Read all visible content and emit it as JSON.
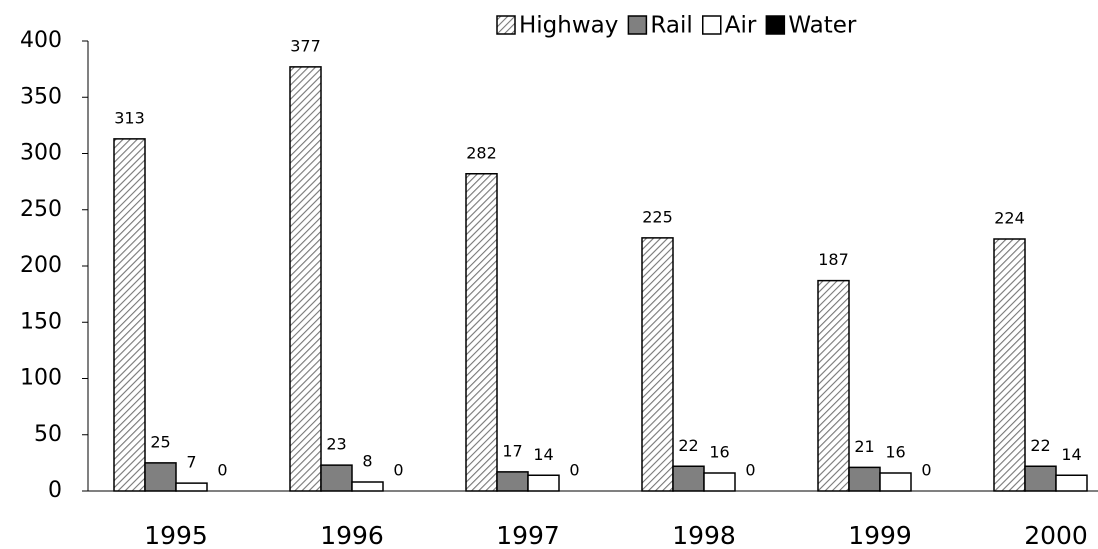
{
  "chart_data": {
    "type": "bar",
    "categories": [
      "1995",
      "1996",
      "1997",
      "1998",
      "1999",
      "2000"
    ],
    "series": [
      {
        "name": "Highway",
        "color": "#777777",
        "pattern": "hatch",
        "values": [
          313,
          377,
          282,
          225,
          187,
          224
        ]
      },
      {
        "name": "Rail",
        "color": "#808080",
        "values": [
          25,
          23,
          17,
          22,
          21,
          22
        ]
      },
      {
        "name": "Air",
        "color": "#ffffff",
        "values": [
          7,
          8,
          14,
          16,
          16,
          14
        ]
      },
      {
        "name": "Water",
        "color": "#000000",
        "values": [
          0,
          0,
          0,
          0,
          0,
          0
        ]
      }
    ],
    "ylim": [
      0,
      400
    ],
    "yticks": [
      0,
      50,
      100,
      150,
      200,
      250,
      300,
      350,
      400
    ],
    "grid": false,
    "legend": "top-right"
  }
}
